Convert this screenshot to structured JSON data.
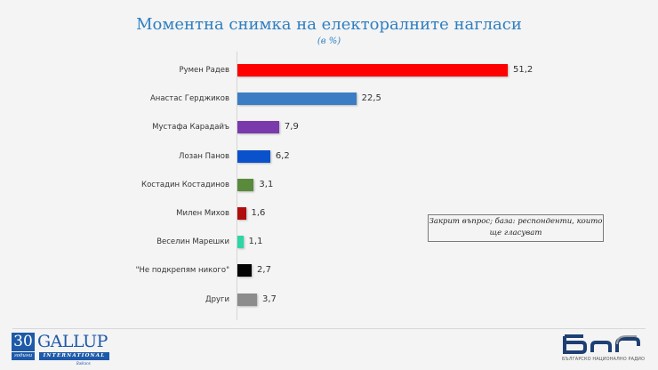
{
  "header": {
    "title": "Моментна снимка на електоралните нагласи",
    "subtitle": "(в %)"
  },
  "note": "Закрит въпрос; база: респонденти, които ще гласуват",
  "footer": {
    "left_logo": {
      "years": "30",
      "years_label": "години",
      "brand": "GALLUP",
      "sub": "INTERNATIONAL",
      "region": "Balkans"
    },
    "right_logo": {
      "brand": "БНР",
      "sub": "БЪЛГАРСКО НАЦИОНАЛНО РАДИО"
    }
  },
  "chart_data": {
    "type": "bar",
    "orientation": "horizontal",
    "title": "Моментна снимка на електоралните нагласи",
    "subtitle": "(в %)",
    "xlabel": "",
    "ylabel": "",
    "grid": false,
    "legend": "none",
    "categories": [
      "Румен Радев",
      "Анастас Герджиков",
      "Мустафа Карадайъ",
      "Лозан Панов",
      "Костадин Костадинов",
      "Милен Михов",
      "Веселин Марешки",
      "\"Не подкрепям никого\"",
      "Други"
    ],
    "values": [
      51.2,
      22.5,
      7.9,
      6.2,
      3.1,
      1.6,
      1.1,
      2.7,
      3.7
    ],
    "value_labels": [
      "51,2",
      "22,5",
      "7,9",
      "6,2",
      "3,1",
      "1,6",
      "1,1",
      "2,7",
      "3,7"
    ],
    "colors": [
      "#ff0000",
      "#3a7dc4",
      "#7b3aac",
      "#0a52cc",
      "#5a8a3c",
      "#b00d0d",
      "#2ed6a4",
      "#050505",
      "#8c8c8c"
    ],
    "annotations": [
      "Закрит въпрос; база: респонденти, които ще гласуват"
    ]
  }
}
